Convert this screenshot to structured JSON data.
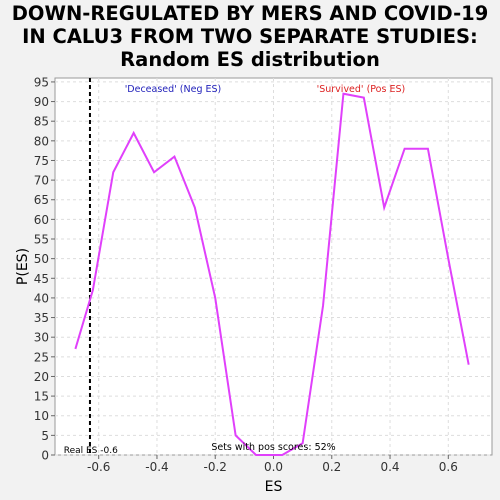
{
  "title_lines": [
    "DOWN-REGULATED BY MERS AND COVID-19",
    "IN CALU3 FROM TWO SEPARATE STUDIES:",
    "Random ES distribution"
  ],
  "chart_data": {
    "type": "line",
    "title": "DOWN-REGULATED BY MERS AND COVID-19 IN CALU3 FROM TWO SEPARATE STUDIES: Random ES distribution",
    "xlabel": "ES",
    "ylabel": "P(ES)",
    "xlim": [
      -0.75,
      0.75
    ],
    "ylim": [
      0,
      96
    ],
    "xticks": [
      -0.6,
      -0.4,
      -0.2,
      0.0,
      0.2,
      0.4,
      0.6
    ],
    "xtick_labels": [
      "-0.6",
      "-0.4",
      "-0.2",
      "0.0",
      "0.2",
      "0.4",
      "0.6"
    ],
    "yticks": [
      0,
      5,
      10,
      15,
      20,
      25,
      30,
      35,
      40,
      45,
      50,
      55,
      60,
      65,
      70,
      75,
      80,
      85,
      90,
      95
    ],
    "grid": true,
    "series": [
      {
        "name": "Random ES",
        "color": "#e040fb",
        "x": [
          -0.68,
          -0.62,
          -0.55,
          -0.48,
          -0.41,
          -0.34,
          -0.27,
          -0.2,
          -0.13,
          -0.06,
          0.03,
          0.1,
          0.17,
          0.24,
          0.31,
          0.38,
          0.45,
          0.53,
          0.6,
          0.67
        ],
        "y": [
          27,
          42,
          72,
          82,
          72,
          76,
          63,
          40,
          5,
          0,
          0,
          3,
          38,
          92,
          91,
          63,
          78,
          78,
          50,
          23
        ]
      }
    ],
    "real_es": -0.63,
    "annotations": {
      "neg_label": "'Deceased' (Neg ES)",
      "neg_color": "#2222bb",
      "pos_label": "'Survived' (Pos ES)",
      "pos_color": "#dd2222",
      "real_es_label": "Real ES -0.6",
      "pos_scores_label": "Sets with pos scores: 52%"
    }
  }
}
